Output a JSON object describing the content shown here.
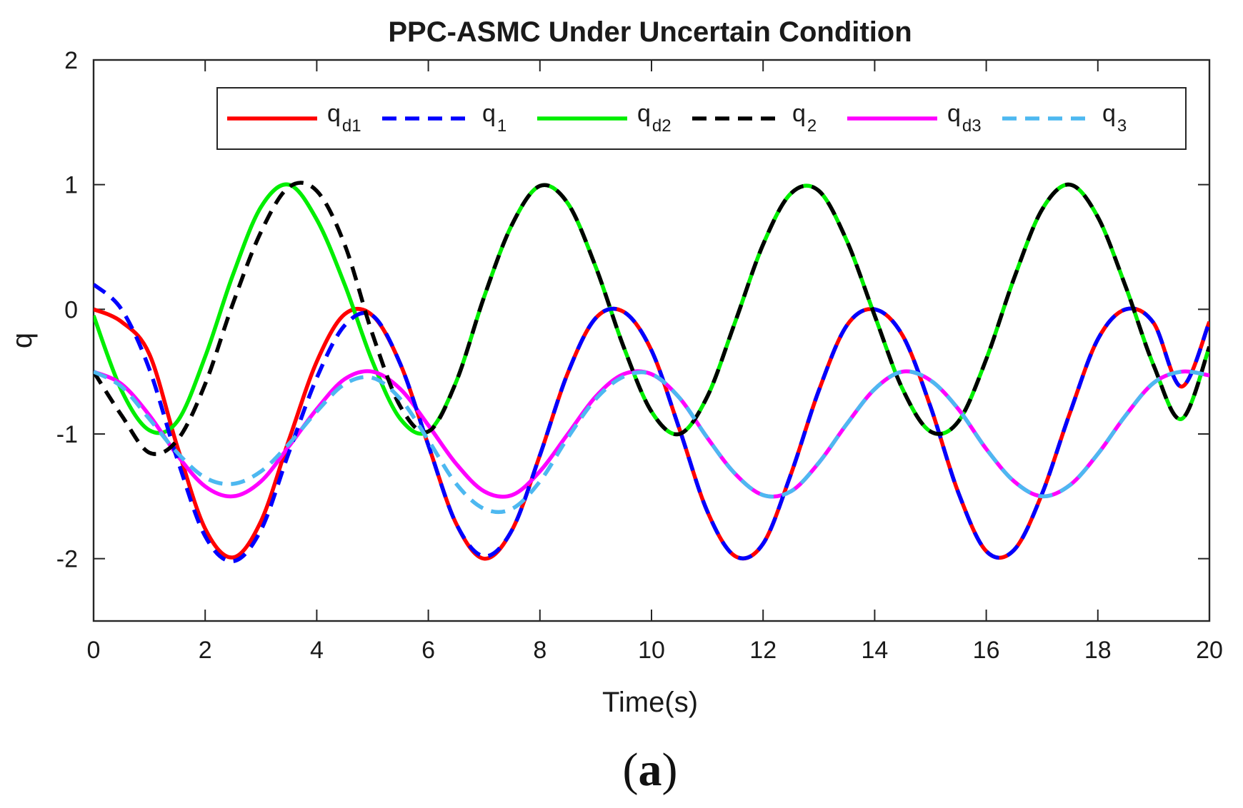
{
  "chart_data": {
    "type": "line",
    "title": "PPC-ASMC Under Uncertain Condition",
    "xlabel": "Time(s)",
    "ylabel": "q",
    "xlim": [
      0,
      20
    ],
    "ylim": [
      -2.5,
      2
    ],
    "xticks": [
      0,
      2,
      4,
      6,
      8,
      10,
      12,
      14,
      16,
      18,
      20
    ],
    "yticks": [
      -2,
      -1,
      0,
      1,
      2
    ],
    "xtick_labels": [
      "0",
      "2",
      "4",
      "6",
      "8",
      "10",
      "12",
      "14",
      "16",
      "18",
      "20"
    ],
    "ytick_labels": [
      "-2",
      "-1",
      "0",
      "1",
      "2"
    ],
    "grid": false,
    "legend_position": "top, inside, horizontal",
    "caption": {
      "open": "(",
      "letter": "a",
      "close": ")"
    },
    "x": [
      0,
      0.5,
      1,
      1.5,
      2,
      2.5,
      3,
      3.5,
      4,
      4.5,
      5,
      5.5,
      6,
      6.5,
      7,
      7.5,
      8,
      8.5,
      9,
      9.5,
      10,
      10.5,
      11,
      11.5,
      12,
      12.5,
      13,
      13.5,
      14,
      14.5,
      15,
      15.5,
      16,
      16.5,
      17,
      17.5,
      18,
      18.5,
      19,
      19.5,
      20
    ],
    "series": [
      {
        "id": "qd1",
        "name": "q",
        "sub": "d1",
        "color": "#ff0000",
        "dash": "solid",
        "values": [
          0,
          -0.1,
          -0.36,
          -1.1,
          -1.76,
          -1.99,
          -1.7,
          -1.05,
          -0.42,
          -0.04,
          -0.05,
          -0.44,
          -1.09,
          -1.72,
          -2.0,
          -1.77,
          -1.17,
          -0.51,
          -0.07,
          -0.02,
          -0.33,
          -0.96,
          -1.62,
          -1.98,
          -1.88,
          -1.32,
          -0.65,
          -0.13,
          0.0,
          -0.21,
          -0.78,
          -1.47,
          -1.94,
          -1.93,
          -1.48,
          -0.83,
          -0.24,
          0.0,
          -0.11,
          -0.62,
          -0.1
        ]
      },
      {
        "id": "q1",
        "name": "q",
        "sub": "1",
        "color": "#0000ff",
        "dash": "dashed",
        "values": [
          0.2,
          0.0,
          -0.48,
          -1.2,
          -1.82,
          -2.02,
          -1.77,
          -1.15,
          -0.55,
          -0.13,
          -0.05,
          -0.44,
          -1.09,
          -1.72,
          -1.98,
          -1.77,
          -1.17,
          -0.51,
          -0.07,
          -0.02,
          -0.33,
          -0.96,
          -1.62,
          -1.98,
          -1.88,
          -1.32,
          -0.65,
          -0.13,
          0.0,
          -0.21,
          -0.78,
          -1.47,
          -1.94,
          -1.93,
          -1.48,
          -0.83,
          -0.24,
          0.0,
          -0.11,
          -0.62,
          -0.1
        ]
      },
      {
        "id": "qd2",
        "name": "q",
        "sub": "d2",
        "color": "#00ee00",
        "dash": "solid",
        "values": [
          -0.05,
          -0.65,
          -0.97,
          -0.9,
          -0.38,
          0.28,
          0.82,
          1.0,
          0.72,
          0.2,
          -0.42,
          -0.88,
          -0.98,
          -0.58,
          0.1,
          0.68,
          0.99,
          0.85,
          0.34,
          -0.3,
          -0.82,
          -1.0,
          -0.7,
          -0.1,
          0.52,
          0.93,
          0.95,
          0.55,
          -0.05,
          -0.64,
          -0.98,
          -0.9,
          -0.4,
          0.25,
          0.8,
          1.0,
          0.74,
          0.18,
          -0.45,
          -0.88,
          -0.3
        ]
      },
      {
        "id": "q2",
        "name": "q",
        "sub": "2",
        "color": "#000000",
        "dash": "dashed",
        "values": [
          -0.5,
          -0.85,
          -1.15,
          -1.05,
          -0.6,
          0.05,
          0.62,
          0.98,
          0.95,
          0.52,
          -0.2,
          -0.78,
          -0.98,
          -0.58,
          0.1,
          0.68,
          0.99,
          0.85,
          0.34,
          -0.3,
          -0.82,
          -1.0,
          -0.7,
          -0.1,
          0.52,
          0.93,
          0.95,
          0.55,
          -0.05,
          -0.64,
          -0.98,
          -0.9,
          -0.4,
          0.25,
          0.8,
          1.0,
          0.74,
          0.18,
          -0.45,
          -0.88,
          -0.3
        ]
      },
      {
        "id": "qd3",
        "name": "q",
        "sub": "d3",
        "color": "#ff00ff",
        "dash": "solid",
        "values": [
          -0.5,
          -0.6,
          -0.85,
          -1.17,
          -1.42,
          -1.5,
          -1.38,
          -1.1,
          -0.8,
          -0.56,
          -0.5,
          -0.64,
          -0.93,
          -1.24,
          -1.46,
          -1.49,
          -1.3,
          -1.0,
          -0.7,
          -0.52,
          -0.52,
          -0.71,
          -1.03,
          -1.32,
          -1.49,
          -1.46,
          -1.23,
          -0.92,
          -0.64,
          -0.5,
          -0.57,
          -0.8,
          -1.12,
          -1.38,
          -1.5,
          -1.41,
          -1.16,
          -0.85,
          -0.59,
          -0.5,
          -0.53
        ]
      },
      {
        "id": "q3",
        "name": "q",
        "sub": "3",
        "color": "#4db8f0",
        "dash": "dashed",
        "values": [
          -0.5,
          -0.62,
          -0.88,
          -1.15,
          -1.35,
          -1.4,
          -1.3,
          -1.08,
          -0.82,
          -0.6,
          -0.55,
          -0.72,
          -1.05,
          -1.4,
          -1.6,
          -1.6,
          -1.38,
          -1.03,
          -0.72,
          -0.54,
          -0.52,
          -0.71,
          -1.03,
          -1.32,
          -1.49,
          -1.46,
          -1.23,
          -0.92,
          -0.64,
          -0.5,
          -0.57,
          -0.8,
          -1.12,
          -1.38,
          -1.5,
          -1.41,
          -1.16,
          -0.85,
          -0.59,
          -0.5,
          -0.53
        ]
      }
    ]
  }
}
